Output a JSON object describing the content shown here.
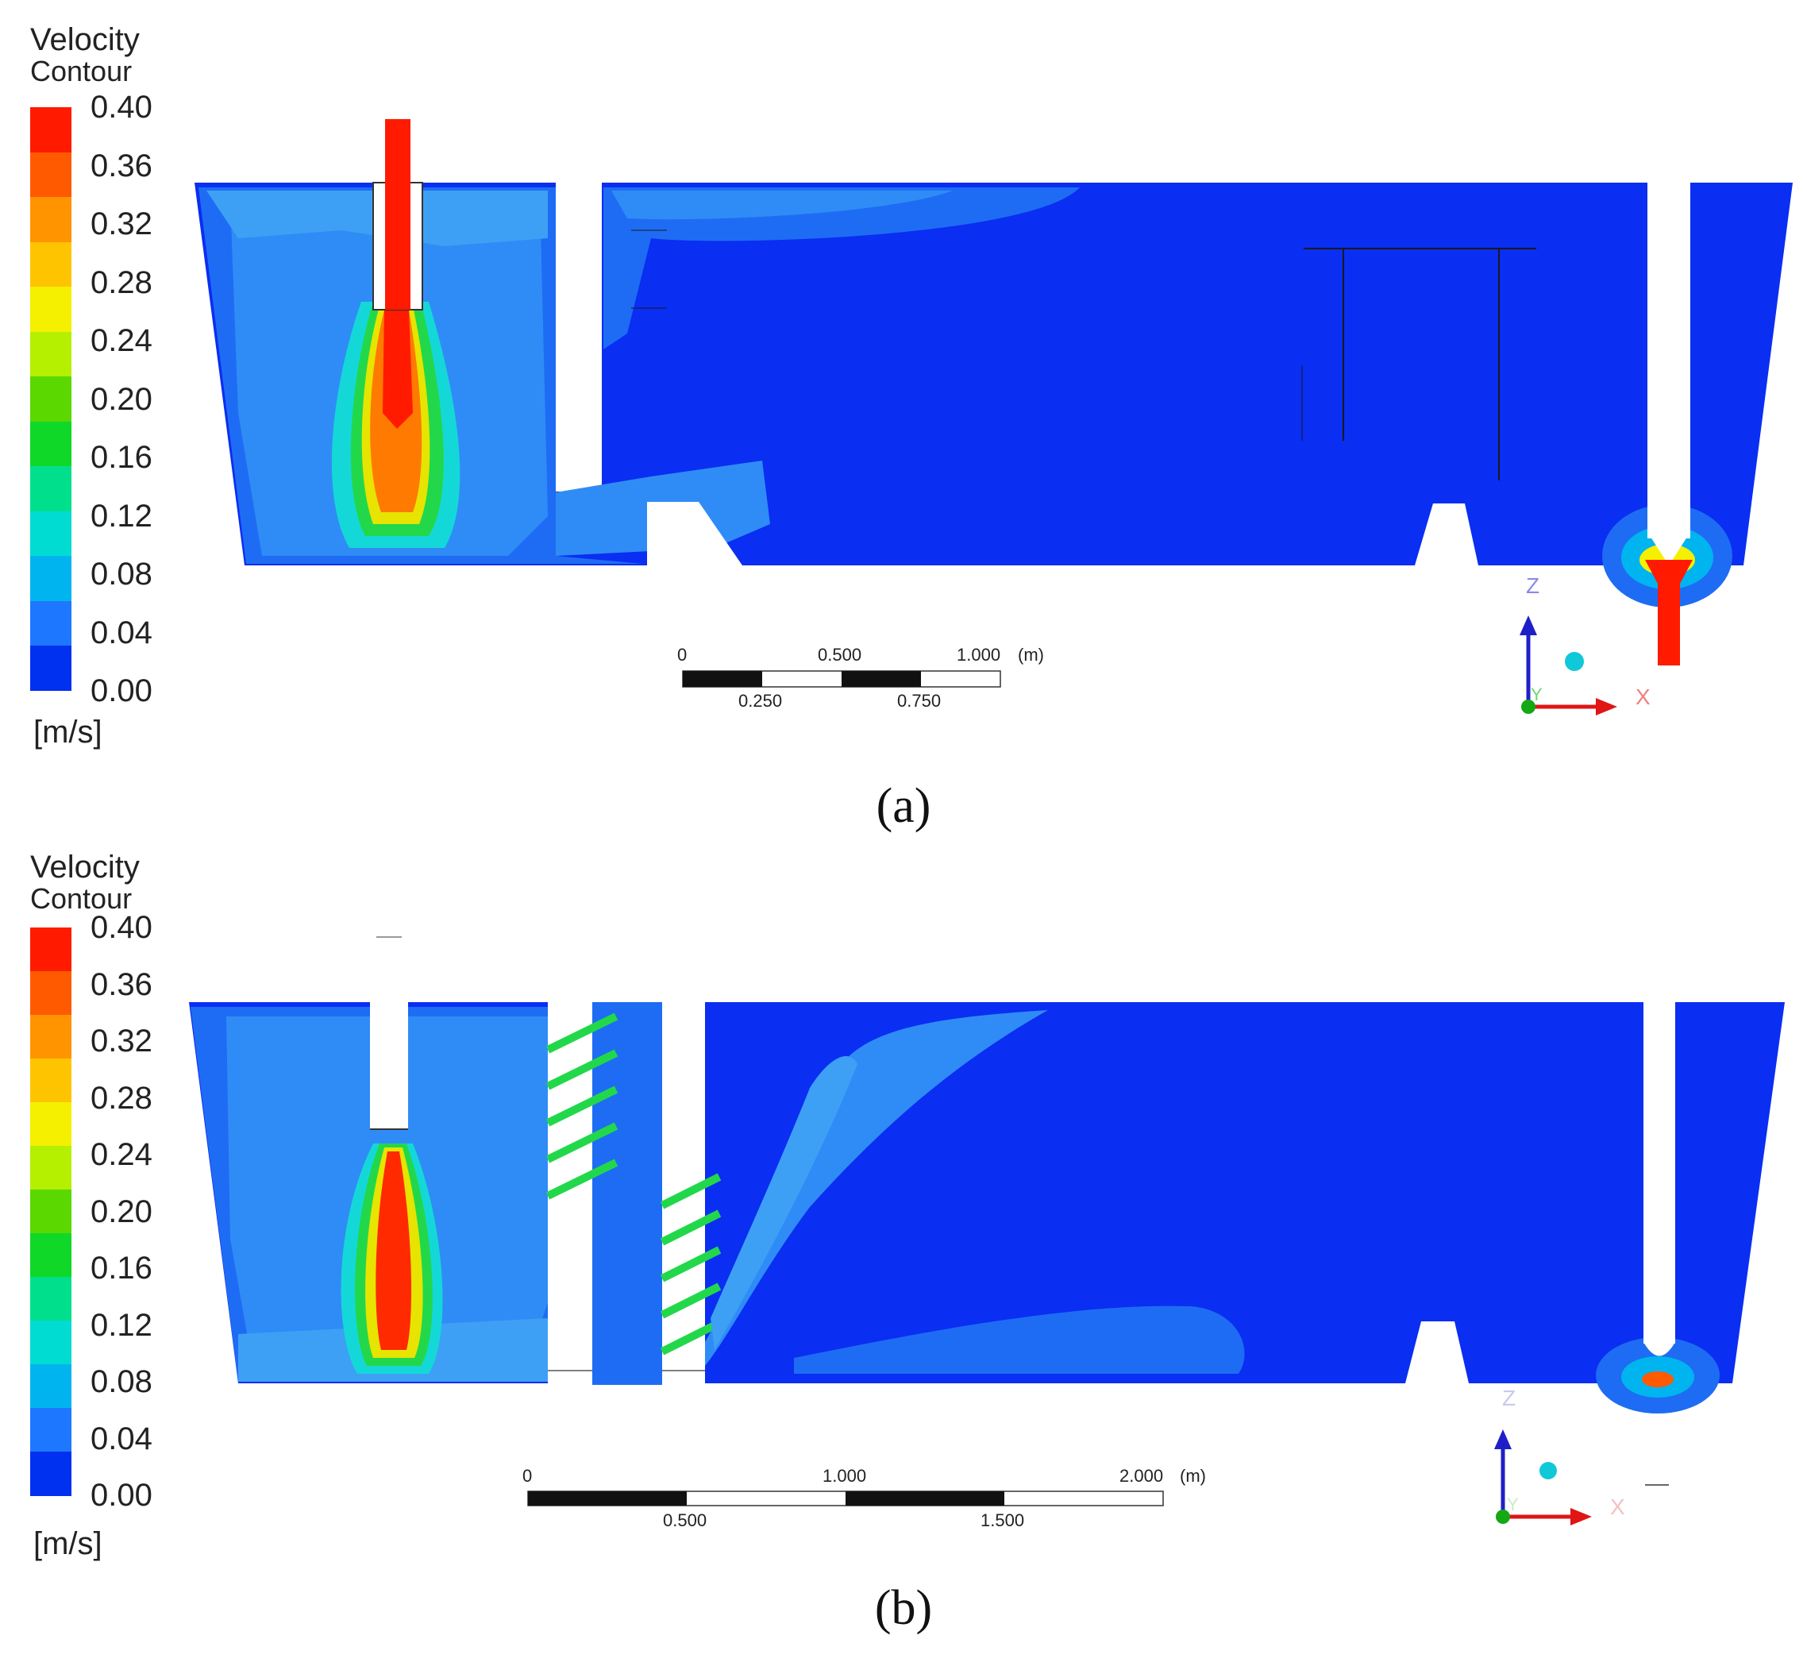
{
  "panels": [
    {
      "id": "a",
      "legend": {
        "title_line1": "Velocity",
        "title_line2": "Contour",
        "ticks": [
          "0.40",
          "0.36",
          "0.32",
          "0.28",
          "0.24",
          "0.20",
          "0.16",
          "0.12",
          "0.08",
          "0.04",
          "0.00"
        ],
        "unit": "[m/s]"
      },
      "scale": {
        "top_labels": [
          "0",
          "0.500",
          "1.000"
        ],
        "unit": "(m)",
        "bottom_labels": [
          "0.250",
          "0.750"
        ]
      },
      "axes": {
        "z": "Z",
        "y": "Y",
        "x": "X"
      },
      "caption": "(a)"
    },
    {
      "id": "b",
      "legend": {
        "title_line1": "Velocity",
        "title_line2": "Contour",
        "ticks": [
          "0.40",
          "0.36",
          "0.32",
          "0.28",
          "0.24",
          "0.20",
          "0.16",
          "0.12",
          "0.08",
          "0.04",
          "0.00"
        ],
        "unit": "[m/s]"
      },
      "scale": {
        "top_labels": [
          "0",
          "1.000",
          "2.000"
        ],
        "unit": "(m)",
        "bottom_labels": [
          "0.500",
          "1.500"
        ]
      },
      "axes": {
        "z": "Z",
        "y": "Y",
        "x": "X"
      },
      "caption": "(b)"
    }
  ],
  "colormap": [
    "#ff1a00",
    "#ff5a00",
    "#ff9400",
    "#ffc400",
    "#f4f000",
    "#b4f000",
    "#5ad800",
    "#10d828",
    "#00e08c",
    "#00dcd2",
    "#00b4f0",
    "#1e78ff",
    "#0030f0"
  ]
}
